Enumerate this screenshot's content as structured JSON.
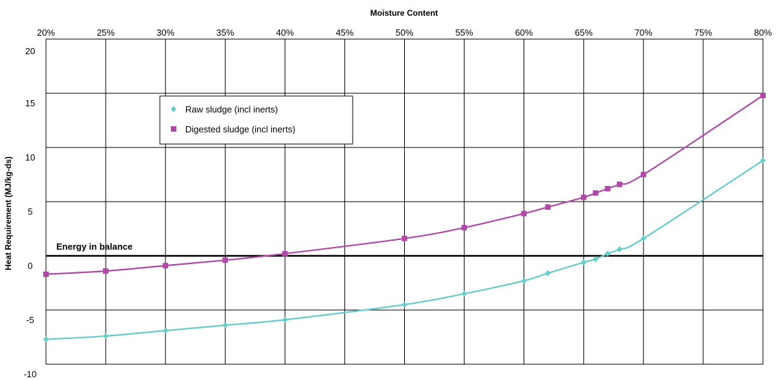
{
  "chart_data": {
    "type": "line",
    "title": "Moisture Content",
    "xlabel": "Moisture Content",
    "ylabel": "Heat Requirement (MJ/kg-ds)",
    "x_tick_labels": [
      "20%",
      "25%",
      "30%",
      "35%",
      "40%",
      "45%",
      "50%",
      "55%",
      "60%",
      "65%",
      "70%",
      "75%",
      "80%"
    ],
    "x_ticks": [
      20,
      25,
      30,
      35,
      40,
      45,
      50,
      55,
      60,
      65,
      70,
      75,
      80
    ],
    "y_tick_labels": [
      "20",
      "15",
      "10",
      "5",
      "0",
      "-5",
      "-10"
    ],
    "y_ticks": [
      20,
      15,
      10,
      5,
      0,
      -5,
      -10
    ],
    "xlim": [
      20,
      80
    ],
    "ylim": [
      -10,
      20
    ],
    "grid": true,
    "legend_position": "upper-left",
    "annotation": {
      "text": "Energy in balance",
      "y": 0
    },
    "series": [
      {
        "name": "Raw sludge (incl inerts)",
        "color": "#66CCCC",
        "marker": "diamond",
        "x": [
          20,
          25,
          30,
          35,
          40,
          50,
          55,
          60,
          62,
          65,
          66,
          67,
          68,
          70,
          80
        ],
        "y": [
          -7.7,
          -7.4,
          -6.9,
          -6.4,
          -5.9,
          -4.5,
          -3.5,
          -2.3,
          -1.6,
          -0.6,
          -0.3,
          0.2,
          0.6,
          1.6,
          8.8
        ]
      },
      {
        "name": "Digested sludge (incl inerts)",
        "color": "#B04AA8",
        "marker": "square",
        "x": [
          20,
          25,
          30,
          35,
          40,
          50,
          55,
          60,
          62,
          65,
          66,
          67,
          68,
          70,
          80
        ],
        "y": [
          -1.7,
          -1.4,
          -0.9,
          -0.4,
          0.2,
          1.6,
          2.6,
          3.9,
          4.5,
          5.4,
          5.8,
          6.2,
          6.6,
          7.5,
          14.8
        ]
      }
    ]
  }
}
